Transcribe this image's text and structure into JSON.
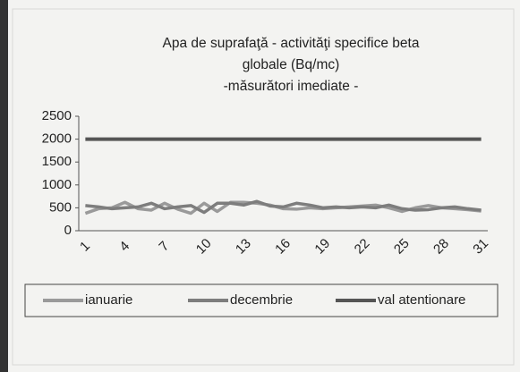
{
  "chart_data": {
    "type": "line",
    "title": [
      "Apa de suprafaţă - activităţi specifice beta",
      "globale (Bq/mc)",
      "-măsurători imediate -"
    ],
    "categories": [
      "1",
      null,
      null,
      "4",
      null,
      null,
      "7",
      null,
      null,
      "10",
      null,
      null,
      "13",
      null,
      null,
      "16",
      null,
      null,
      "19",
      null,
      null,
      "22",
      null,
      null,
      "25",
      null,
      null,
      "28",
      null,
      null,
      "31"
    ],
    "series": [
      {
        "name": "ianuarie",
        "color": "#9a9a9a",
        "values": [
          380,
          480,
          500,
          620,
          480,
          450,
          600,
          470,
          380,
          600,
          420,
          620,
          620,
          600,
          560,
          480,
          470,
          500,
          480,
          500,
          520,
          540,
          560,
          500,
          420,
          500,
          550,
          500,
          480,
          460,
          430
        ]
      },
      {
        "name": "decembrie",
        "color": "#7d7d7d",
        "values": [
          550,
          520,
          480,
          500,
          520,
          600,
          480,
          520,
          550,
          400,
          600,
          600,
          560,
          640,
          540,
          520,
          600,
          560,
          500,
          520,
          500,
          520,
          500,
          560,
          480,
          450,
          460,
          500,
          520,
          480,
          450
        ]
      },
      {
        "name": "val atentionare",
        "color": "#555555",
        "values": [
          2000,
          2000,
          2000,
          2000,
          2000,
          2000,
          2000,
          2000,
          2000,
          2000,
          2000,
          2000,
          2000,
          2000,
          2000,
          2000,
          2000,
          2000,
          2000,
          2000,
          2000,
          2000,
          2000,
          2000,
          2000,
          2000,
          2000,
          2000,
          2000,
          2000,
          2000
        ]
      }
    ],
    "ylim": [
      0,
      2500
    ],
    "yticks": [
      0,
      500,
      1000,
      1500,
      2000,
      2500
    ],
    "legend": "bottom"
  }
}
